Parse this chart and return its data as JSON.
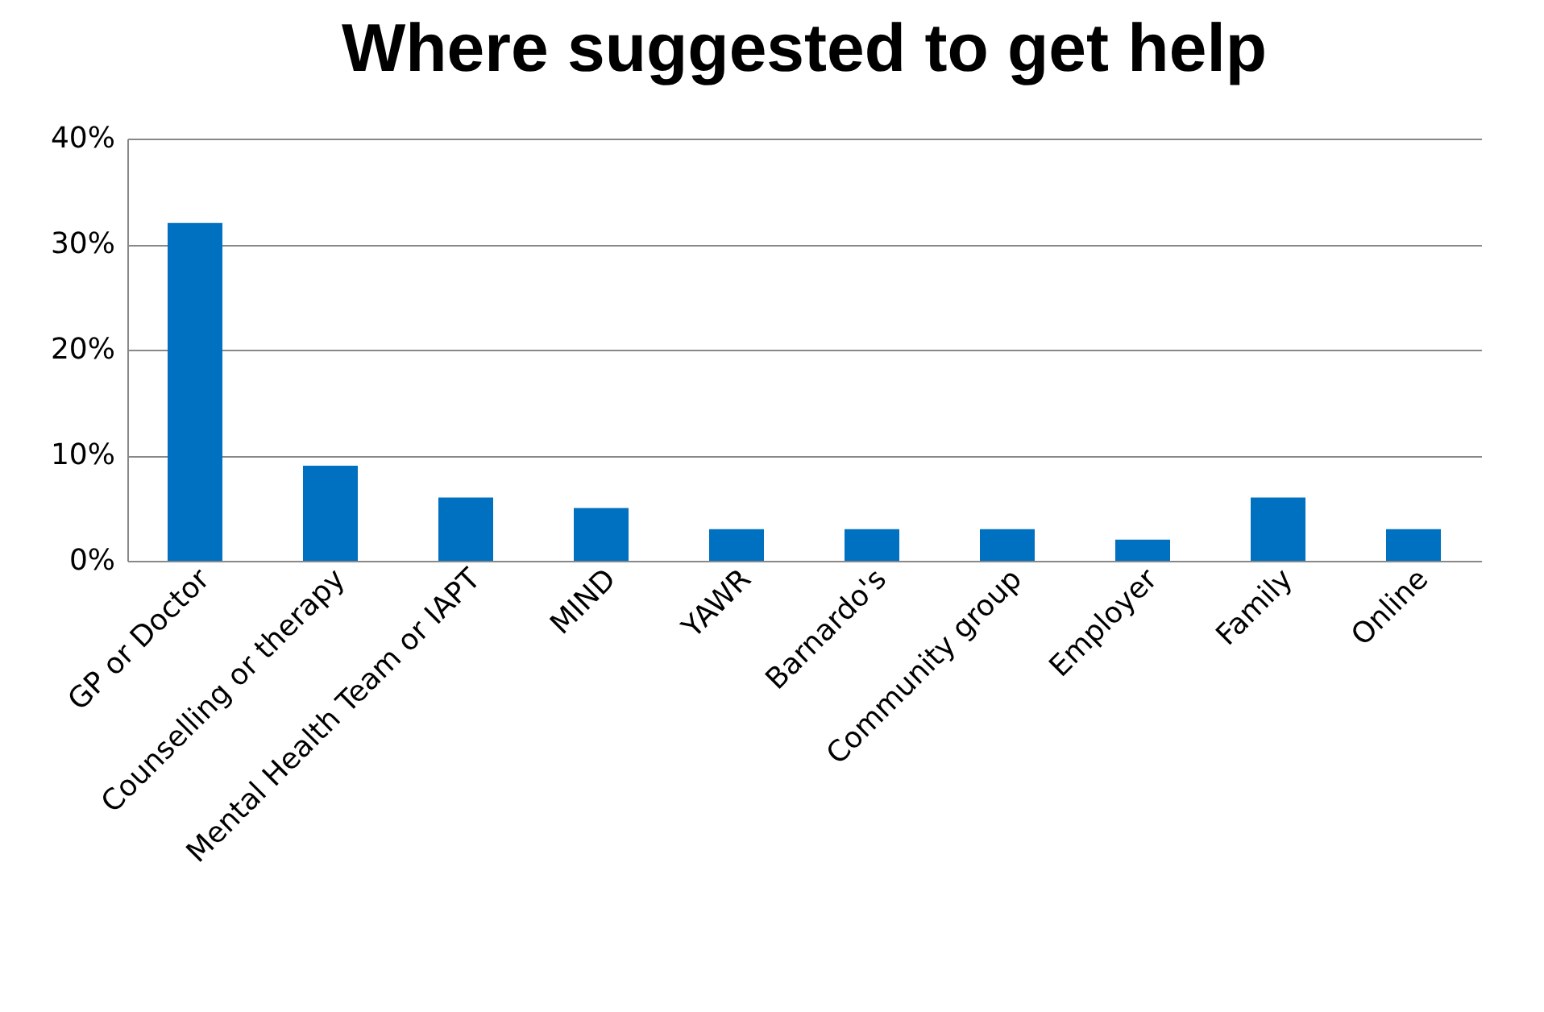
{
  "chart_data": {
    "type": "bar",
    "title": "Where suggested to get help",
    "categories": [
      "GP or Doctor",
      "Counselling or therapy",
      "Mental Health Team or IAPT",
      "MIND",
      "YAWR",
      "Barnardo's",
      "Community group",
      "Employer",
      "Family",
      "Online"
    ],
    "values": [
      32,
      9,
      6,
      5,
      3,
      3,
      3,
      2,
      6,
      3
    ],
    "color": "#0070c0",
    "ylim": [
      0,
      40
    ],
    "yticks": [
      {
        "value": 0,
        "label": "0%"
      },
      {
        "value": 10,
        "label": "10%"
      },
      {
        "value": 20,
        "label": "20%"
      },
      {
        "value": 30,
        "label": "30%"
      },
      {
        "value": 40,
        "label": "40%"
      }
    ],
    "grid": "y"
  }
}
